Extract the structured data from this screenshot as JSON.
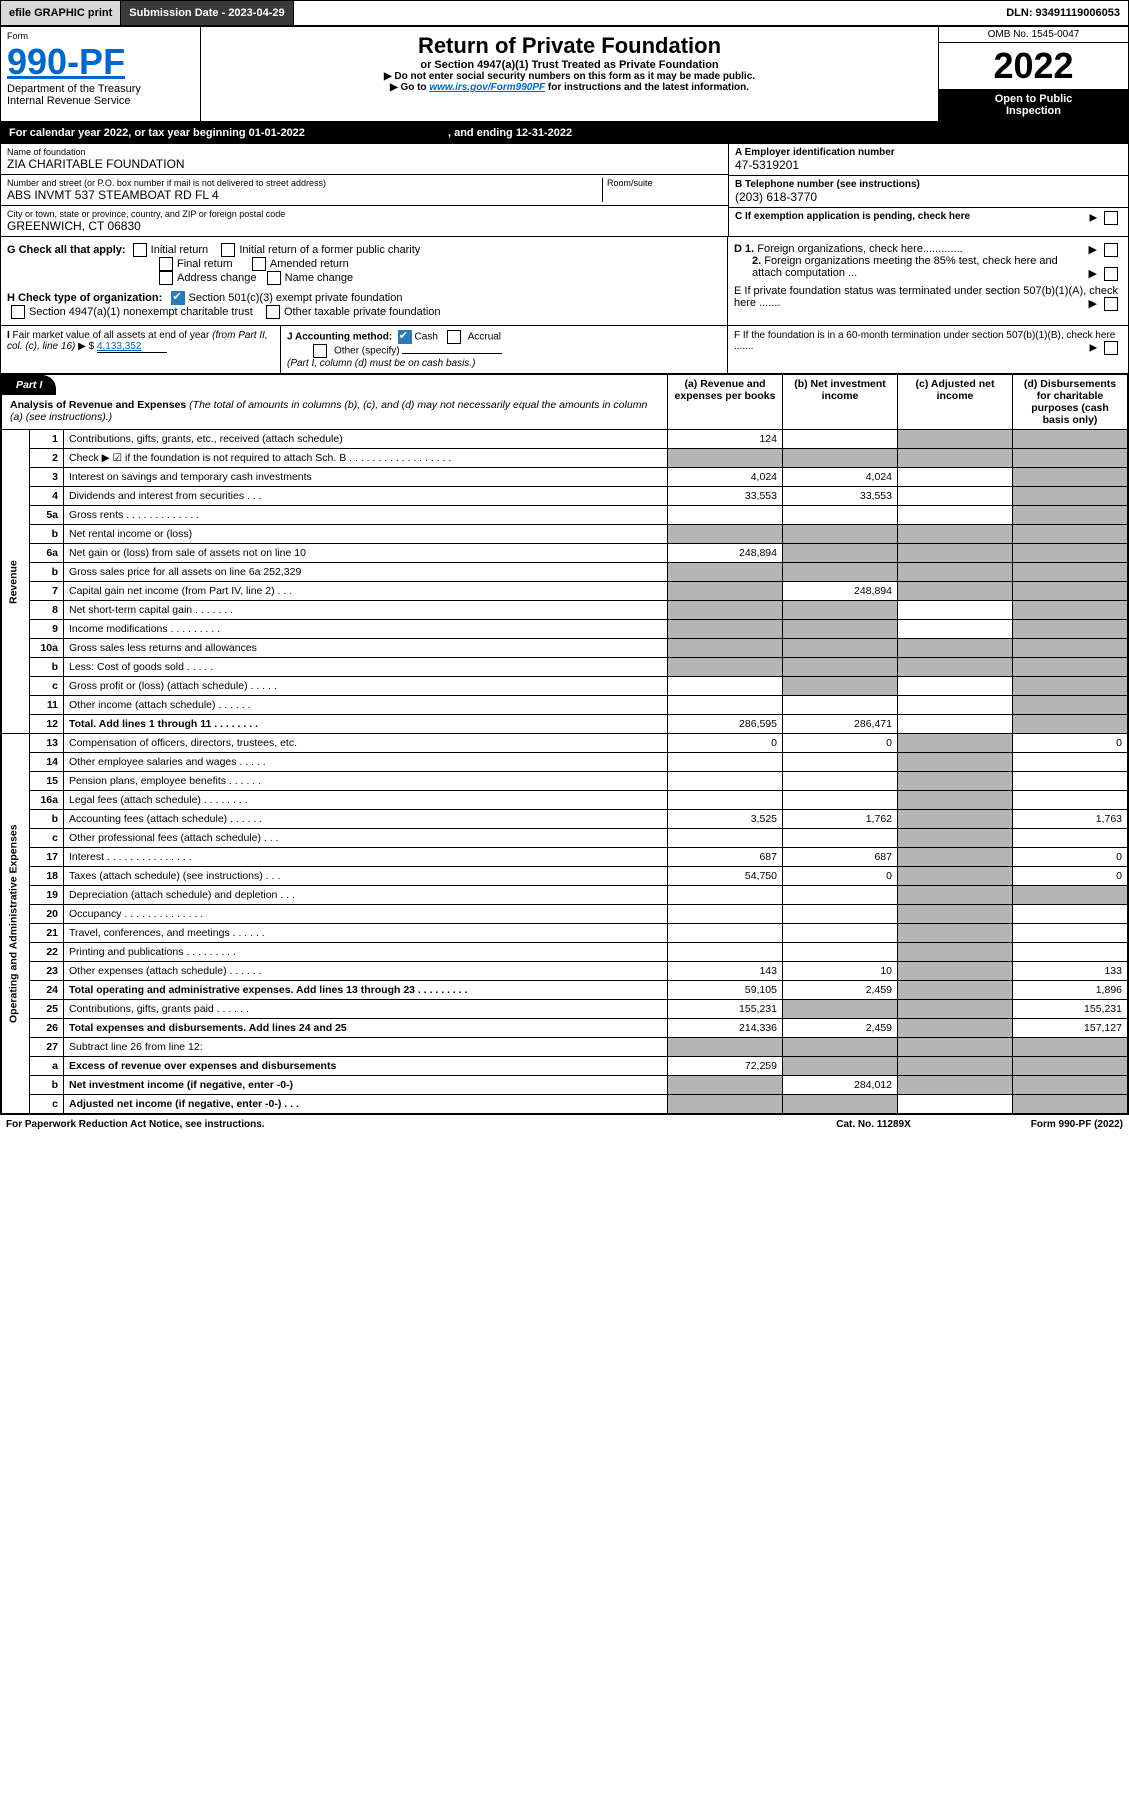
{
  "topbar": {
    "efile": "efile GRAPHIC print",
    "submission": "Submission Date - 2023-04-29",
    "dln": "DLN: 93491119006053"
  },
  "header": {
    "form_label": "Form",
    "form_no": "990-PF",
    "dept1": "Department of the Treasury",
    "dept2": "Internal Revenue Service",
    "title": "Return of Private Foundation",
    "subtitle": "or Section 4947(a)(1) Trust Treated as Private Foundation",
    "note1": "▶ Do not enter social security numbers on this form as it may be made public.",
    "note2": "▶ Go to www.irs.gov/Form990PF for instructions and the latest information.",
    "omb": "OMB No. 1545-0047",
    "year": "2022",
    "open1": "Open to Public",
    "open2": "Inspection"
  },
  "calyear": {
    "text1": "For calendar year 2022, or tax year beginning 01-01-2022",
    "text2": ", and ending 12-31-2022"
  },
  "id": {
    "name_lbl": "Name of foundation",
    "name": "ZIA CHARITABLE FOUNDATION",
    "addr_lbl": "Number and street (or P.O. box number if mail is not delivered to street address)",
    "addr": "ABS INVMT 537 STEAMBOAT RD FL 4",
    "room_lbl": "Room/suite",
    "city_lbl": "City or town, state or province, country, and ZIP or foreign postal code",
    "city": "GREENWICH, CT  06830",
    "ein_lbl": "A Employer identification number",
    "ein": "47-5319201",
    "tel_lbl": "B Telephone number (see instructions)",
    "tel": "(203) 618-3770",
    "c": "C If exemption application is pending, check here",
    "d1": "D 1. Foreign organizations, check here.............",
    "d2": "2. Foreign organizations meeting the 85% test, check here and attach computation ...",
    "e": "E  If private foundation status was terminated under section 507(b)(1)(A), check here .......",
    "f": "F  If the foundation is in a 60-month termination under section 507(b)(1)(B), check here .......",
    "g": "G Check all that apply:",
    "g1": "Initial return",
    "g2": "Initial return of a former public charity",
    "g3": "Final return",
    "g4": "Amended return",
    "g5": "Address change",
    "g6": "Name change",
    "h": "H Check type of organization:",
    "h1": "Section 501(c)(3) exempt private foundation",
    "h2": "Section 4947(a)(1) nonexempt charitable trust",
    "h3": "Other taxable private foundation",
    "i": "I Fair market value of all assets at end of year (from Part II, col. (c), line 16) ▶ $",
    "i_val": "4,133,352",
    "j": "J Accounting method:",
    "j1": "Cash",
    "j2": "Accrual",
    "j3": "Other (specify)",
    "j_note": "(Part I, column (d) must be on cash basis.)"
  },
  "part1": {
    "label": "Part I",
    "title": "Analysis of Revenue and Expenses",
    "sub": "(The total of amounts in columns (b), (c), and (d) may not necessarily equal the amounts in column (a) (see instructions).)",
    "col_a": "(a)  Revenue and expenses per books",
    "col_b": "(b)  Net investment income",
    "col_c": "(c)  Adjusted net income",
    "col_d": "(d)  Disbursements for charitable purposes (cash basis only)"
  },
  "side": {
    "rev": "Revenue",
    "exp": "Operating and Administrative Expenses"
  },
  "rows": [
    {
      "n": "1",
      "d": "Contributions, gifts, grants, etc., received (attach schedule)",
      "a": "124",
      "b": "",
      "c": "shade",
      "dd": "shade"
    },
    {
      "n": "2",
      "d": "Check ▶ ☑ if the foundation is not required to attach Sch. B  . . . . . . . . . . . . . . . . . .",
      "a": "shade",
      "b": "shade",
      "c": "shade",
      "dd": "shade"
    },
    {
      "n": "3",
      "d": "Interest on savings and temporary cash investments",
      "a": "4,024",
      "b": "4,024",
      "c": "",
      "dd": "shade"
    },
    {
      "n": "4",
      "d": "Dividends and interest from securities  . . .",
      "a": "33,553",
      "b": "33,553",
      "c": "",
      "dd": "shade"
    },
    {
      "n": "5a",
      "d": "Gross rents  . . . . . . . . . . . . .",
      "a": "",
      "b": "",
      "c": "",
      "dd": "shade"
    },
    {
      "n": "b",
      "d": "Net rental income or (loss)  ",
      "a": "shade",
      "b": "shade",
      "c": "shade",
      "dd": "shade"
    },
    {
      "n": "6a",
      "d": "Net gain or (loss) from sale of assets not on line 10",
      "a": "248,894",
      "b": "shade",
      "c": "shade",
      "dd": "shade"
    },
    {
      "n": "b",
      "d": "Gross sales price for all assets on line 6a            252,329",
      "a": "shade",
      "b": "shade",
      "c": "shade",
      "dd": "shade"
    },
    {
      "n": "7",
      "d": "Capital gain net income (from Part IV, line 2)  . . .",
      "a": "shade",
      "b": "248,894",
      "c": "shade",
      "dd": "shade"
    },
    {
      "n": "8",
      "d": "Net short-term capital gain  . . . . . . .",
      "a": "shade",
      "b": "shade",
      "c": "",
      "dd": "shade"
    },
    {
      "n": "9",
      "d": "Income modifications  . . . . . . . . .",
      "a": "shade",
      "b": "shade",
      "c": "",
      "dd": "shade"
    },
    {
      "n": "10a",
      "d": "Gross sales less returns and allowances",
      "a": "shade",
      "b": "shade",
      "c": "shade",
      "dd": "shade"
    },
    {
      "n": "b",
      "d": "Less: Cost of goods sold  . . . . .",
      "a": "shade",
      "b": "shade",
      "c": "shade",
      "dd": "shade"
    },
    {
      "n": "c",
      "d": "Gross profit or (loss) (attach schedule)  . . . . .",
      "a": "",
      "b": "shade",
      "c": "",
      "dd": "shade"
    },
    {
      "n": "11",
      "d": "Other income (attach schedule)  . . . . . .",
      "a": "",
      "b": "",
      "c": "",
      "dd": "shade"
    },
    {
      "n": "12",
      "d": "Total. Add lines 1 through 11  . . . . . . . .",
      "a": "286,595",
      "b": "286,471",
      "c": "",
      "dd": "shade",
      "bold": true
    },
    {
      "n": "13",
      "d": "Compensation of officers, directors, trustees, etc.",
      "a": "0",
      "b": "0",
      "c": "shade",
      "dd": "0"
    },
    {
      "n": "14",
      "d": "Other employee salaries and wages  . . . . .",
      "a": "",
      "b": "",
      "c": "shade",
      "dd": ""
    },
    {
      "n": "15",
      "d": "Pension plans, employee benefits  . . . . . .",
      "a": "",
      "b": "",
      "c": "shade",
      "dd": ""
    },
    {
      "n": "16a",
      "d": "Legal fees (attach schedule)  . . . . . . . .",
      "a": "",
      "b": "",
      "c": "shade",
      "dd": ""
    },
    {
      "n": "b",
      "d": "Accounting fees (attach schedule)  . . . . . .",
      "a": "3,525",
      "b": "1,762",
      "c": "shade",
      "dd": "1,763"
    },
    {
      "n": "c",
      "d": "Other professional fees (attach schedule)  . . .",
      "a": "",
      "b": "",
      "c": "shade",
      "dd": ""
    },
    {
      "n": "17",
      "d": "Interest  . . . . . . . . . . . . . . .",
      "a": "687",
      "b": "687",
      "c": "shade",
      "dd": "0"
    },
    {
      "n": "18",
      "d": "Taxes (attach schedule) (see instructions)  . . .",
      "a": "54,750",
      "b": "0",
      "c": "shade",
      "dd": "0"
    },
    {
      "n": "19",
      "d": "Depreciation (attach schedule) and depletion  . . .",
      "a": "",
      "b": "",
      "c": "shade",
      "dd": "shade"
    },
    {
      "n": "20",
      "d": "Occupancy  . . . . . . . . . . . . . .",
      "a": "",
      "b": "",
      "c": "shade",
      "dd": ""
    },
    {
      "n": "21",
      "d": "Travel, conferences, and meetings  . . . . . .",
      "a": "",
      "b": "",
      "c": "shade",
      "dd": ""
    },
    {
      "n": "22",
      "d": "Printing and publications  . . . . . . . . .",
      "a": "",
      "b": "",
      "c": "shade",
      "dd": ""
    },
    {
      "n": "23",
      "d": "Other expenses (attach schedule)  . . . . . .",
      "a": "143",
      "b": "10",
      "c": "shade",
      "dd": "133"
    },
    {
      "n": "24",
      "d": "Total operating and administrative expenses. Add lines 13 through 23  . . . . . . . . .",
      "a": "59,105",
      "b": "2,459",
      "c": "shade",
      "dd": "1,896",
      "bold": true
    },
    {
      "n": "25",
      "d": "Contributions, gifts, grants paid  . . . . . .",
      "a": "155,231",
      "b": "shade",
      "c": "shade",
      "dd": "155,231"
    },
    {
      "n": "26",
      "d": "Total expenses and disbursements. Add lines 24 and 25",
      "a": "214,336",
      "b": "2,459",
      "c": "shade",
      "dd": "157,127",
      "bold": true
    },
    {
      "n": "27",
      "d": "Subtract line 26 from line 12:",
      "a": "shade",
      "b": "shade",
      "c": "shade",
      "dd": "shade"
    },
    {
      "n": "a",
      "d": "Excess of revenue over expenses and disbursements",
      "a": "72,259",
      "b": "shade",
      "c": "shade",
      "dd": "shade",
      "bold": true
    },
    {
      "n": "b",
      "d": "Net investment income (if negative, enter -0-)",
      "a": "shade",
      "b": "284,012",
      "c": "shade",
      "dd": "shade",
      "bold": true
    },
    {
      "n": "c",
      "d": "Adjusted net income (if negative, enter -0-)  . . .",
      "a": "shade",
      "b": "shade",
      "c": "",
      "dd": "shade",
      "bold": true
    }
  ],
  "footer": {
    "left": "For Paperwork Reduction Act Notice, see instructions.",
    "mid": "Cat. No. 11289X",
    "right": "Form 990-PF (2022)"
  }
}
